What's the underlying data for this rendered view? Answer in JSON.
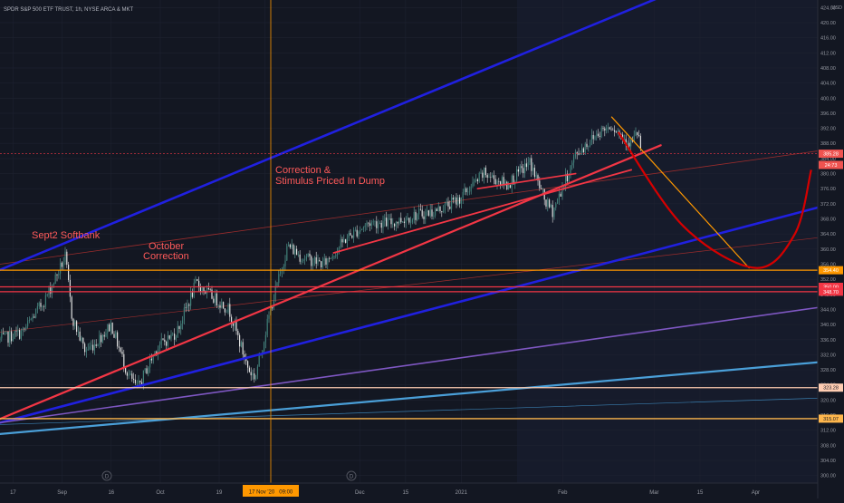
{
  "header": {
    "symbol_line": "SPDR S&P 500 ETF TRUST, 1h, NYSE ARCA & MKT"
  },
  "price_axis": {
    "currency": "USD",
    "ticks": [
      424,
      420,
      416,
      412,
      408,
      404,
      400,
      396,
      392,
      388,
      384,
      380,
      376,
      372,
      368,
      364,
      360,
      356,
      352,
      348,
      344,
      340,
      336,
      332,
      328,
      324,
      320,
      316,
      312,
      308,
      304,
      300
    ]
  },
  "time_axis": {
    "labels": [
      "17",
      "Sep",
      "16",
      "Oct",
      "19",
      "Nov",
      "Dec",
      "15",
      "2021",
      "Feb",
      "Mar",
      "15",
      "Apr"
    ],
    "crosshair_label": "17 Nov '20   09:00"
  },
  "price_labels": [
    {
      "text": "385.28",
      "color": "#ef5350"
    },
    {
      "text": "24:73",
      "color": "#ef5350"
    },
    {
      "text": "354.40",
      "color": "#ff9800"
    },
    {
      "text": "350.00",
      "color": "#f23645"
    },
    {
      "text": "348.70",
      "color": "#f23645"
    },
    {
      "text": "323.28",
      "color": "#ffcdb2"
    },
    {
      "text": "315.07",
      "color": "#ffb74d"
    }
  ],
  "annotations": {
    "sept": "Sept2 Softbank",
    "oct_line1": "October",
    "oct_line2": "Correction",
    "dump_line1": "Correction &",
    "dump_line2": "Stimulus Priced In Dump"
  },
  "event_markers": [
    "D",
    "D"
  ],
  "chart_data": {
    "type": "candlestick",
    "title": "SPDR S&P 500 ETF TRUST, 1h, NYSE ARCA & MKT",
    "x_range": [
      "2020-08-13",
      "2021-04-20"
    ],
    "ylim": [
      298,
      426
    ],
    "price_path": [
      [
        "2020-08-13",
        336
      ],
      [
        "2020-08-20",
        338
      ],
      [
        "2020-08-27",
        347
      ],
      [
        "2020-09-02",
        358
      ],
      [
        "2020-09-04",
        342
      ],
      [
        "2020-09-08",
        333
      ],
      [
        "2020-09-11",
        335
      ],
      [
        "2020-09-16",
        340
      ],
      [
        "2020-09-21",
        327
      ],
      [
        "2020-09-24",
        323
      ],
      [
        "2020-09-30",
        334
      ],
      [
        "2020-10-06",
        338
      ],
      [
        "2020-10-12",
        351
      ],
      [
        "2020-10-16",
        348
      ],
      [
        "2020-10-22",
        344
      ],
      [
        "2020-10-28",
        328
      ],
      [
        "2020-10-30",
        326
      ],
      [
        "2020-11-04",
        345
      ],
      [
        "2020-11-09",
        361
      ],
      [
        "2020-11-13",
        358
      ],
      [
        "2020-11-20",
        356
      ],
      [
        "2020-11-27",
        363
      ],
      [
        "2020-12-04",
        367
      ],
      [
        "2020-12-11",
        367
      ],
      [
        "2020-12-18",
        369
      ],
      [
        "2020-12-24",
        370
      ],
      [
        "2020-12-31",
        373
      ],
      [
        "2021-01-08",
        380
      ],
      [
        "2021-01-15",
        377
      ],
      [
        "2021-01-22",
        383
      ],
      [
        "2021-01-27",
        372
      ],
      [
        "2021-01-29",
        370
      ],
      [
        "2021-02-05",
        385
      ],
      [
        "2021-02-12",
        391
      ],
      [
        "2021-02-16",
        393
      ],
      [
        "2021-02-19",
        390
      ],
      [
        "2021-02-22",
        388
      ],
      [
        "2021-02-24",
        391
      ],
      [
        "2021-02-25",
        386
      ]
    ],
    "horizontal_levels": [
      {
        "price": 354.4,
        "color": "#ff9800"
      },
      {
        "price": 350.0,
        "color": "#f23645"
      },
      {
        "price": 348.7,
        "color": "#f23645"
      },
      {
        "price": 323.28,
        "color": "#ffcdb2"
      },
      {
        "price": 315.07,
        "color": "#ffb74d"
      },
      {
        "price": 385.28,
        "color": "#f23645"
      }
    ],
    "trendlines": [
      {
        "name": "upper-channel",
        "color": "#2020e0",
        "from": [
          "2020-08-13",
          354.5
        ],
        "to": [
          "2021-04-20",
          444
        ]
      },
      {
        "name": "lower-channel",
        "color": "#2020e0",
        "from": [
          "2020-08-13",
          314
        ],
        "to": [
          "2021-04-20",
          371
        ]
      },
      {
        "name": "major-support",
        "color": "#f23645",
        "from": [
          "2020-08-13",
          315
        ],
        "to": [
          "2021-03-03",
          387.5
        ]
      },
      {
        "name": "violet-trend",
        "color": "#7e57c2",
        "from": [
          "2020-08-13",
          314
        ],
        "to": [
          "2021-04-20",
          344.5
        ]
      },
      {
        "name": "steel-trend",
        "color": "#4a9fd8",
        "from": [
          "2020-08-13",
          311
        ],
        "to": [
          "2021-04-20",
          330
        ]
      },
      {
        "name": "steel-thin",
        "color": "#3a7fb0",
        "from": [
          "2020-08-13",
          313.5
        ],
        "to": [
          "2021-04-20",
          320.5
        ]
      },
      {
        "name": "thin-red-a",
        "color": "#9a2c2c",
        "from": [
          "2020-08-13",
          356
        ],
        "to": [
          "2021-04-20",
          386
        ]
      },
      {
        "name": "thin-red-b",
        "color": "#9a2c2c",
        "from": [
          "2020-08-13",
          338
        ],
        "to": [
          "2021-04-20",
          363
        ]
      },
      {
        "name": "dec-support",
        "color": "#f23645",
        "from": [
          "2020-11-23",
          359
        ],
        "to": [
          "2021-02-22",
          381
        ]
      },
      {
        "name": "jan-line",
        "color": "#f23645",
        "from": [
          "2021-01-06",
          376
        ],
        "to": [
          "2021-02-05",
          380
        ]
      },
      {
        "name": "orange-drop",
        "color": "#ff9800",
        "from": [
          "2021-02-16",
          395
        ],
        "to": [
          "2021-03-30",
          355
        ]
      }
    ],
    "projection_curve": {
      "color": "#d50000",
      "points": [
        [
          "2021-02-18",
          391
        ],
        [
          "2021-03-10",
          366
        ],
        [
          "2021-04-01",
          355
        ],
        [
          "2021-04-13",
          364
        ],
        [
          "2021-04-18",
          381
        ]
      ]
    }
  }
}
